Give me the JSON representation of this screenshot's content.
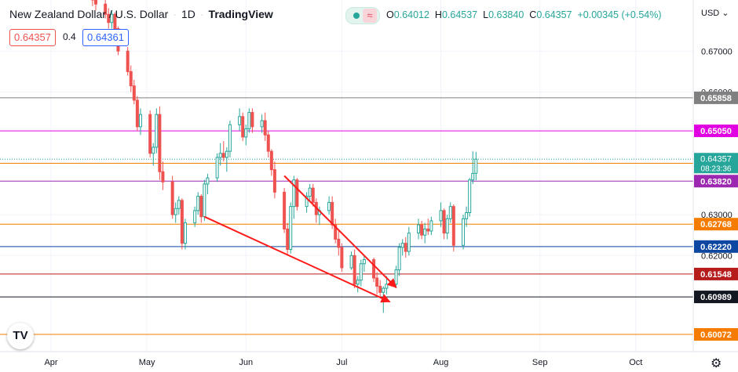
{
  "header": {
    "instrument": "New Zealand Dollar / U.S. Dollar",
    "interval": "1D",
    "brand": "TradingView",
    "ohlc": {
      "O": "0.64012",
      "H": "0.64537",
      "L": "0.63840",
      "C": "0.64357",
      "change": "+0.00345 (+0.54%)"
    }
  },
  "trade": {
    "sell": "0.64357",
    "spread": "0.4",
    "buy": "0.64361"
  },
  "axis": {
    "currency": "USD"
  },
  "chart_data": {
    "type": "candlestick",
    "x_labels": [
      "Apr",
      "May",
      "Jun",
      "Jul",
      "Aug",
      "Sep",
      "Oct"
    ],
    "y_ticks": [
      0.67,
      0.66,
      0.63,
      0.62
    ],
    "ylim": [
      0.5965,
      0.6825
    ],
    "last_price": 0.64357,
    "countdown": "08:23:36",
    "levels": [
      {
        "value": 0.65858,
        "color": "#808080"
      },
      {
        "value": 0.6505,
        "color": "#e100e1"
      },
      {
        "value": 0.64256,
        "color": "#f57c00"
      },
      {
        "value": 0.6382,
        "color": "#9c27b0"
      },
      {
        "value": 0.62768,
        "color": "#f57c00"
      },
      {
        "value": 0.6222,
        "color": "#0d47a1"
      },
      {
        "value": 0.61548,
        "color": "#b71c1c"
      },
      {
        "value": 0.60989,
        "color": "#131722"
      },
      {
        "value": 0.60072,
        "color": "#f57c00"
      }
    ],
    "arrows": [
      {
        "from": [
          "05-19",
          0.6295
        ],
        "to": [
          "07-16",
          0.6087
        ]
      },
      {
        "from": [
          "06-13",
          0.6395
        ],
        "to": [
          "07-18",
          0.6122
        ]
      }
    ],
    "candles": [
      [
        "04-14",
        0.685,
        0.687,
        0.681,
        0.6825
      ],
      [
        "04-15",
        0.6825,
        0.6845,
        0.68,
        0.6815
      ],
      [
        "04-18",
        0.6815,
        0.683,
        0.678,
        0.679
      ],
      [
        "04-19",
        0.679,
        0.6805,
        0.6755,
        0.677
      ],
      [
        "04-20",
        0.677,
        0.68,
        0.6755,
        0.679
      ],
      [
        "04-21",
        0.679,
        0.6795,
        0.674,
        0.6755
      ],
      [
        "04-22",
        0.6755,
        0.676,
        0.669,
        0.67
      ],
      [
        "04-25",
        0.67,
        0.671,
        0.664,
        0.665
      ],
      [
        "04-26",
        0.665,
        0.6665,
        0.66,
        0.6615
      ],
      [
        "04-27",
        0.6615,
        0.663,
        0.657,
        0.658
      ],
      [
        "04-28",
        0.658,
        0.659,
        0.6505,
        0.6515
      ],
      [
        "04-29",
        0.6515,
        0.656,
        0.6495,
        0.6545
      ],
      [
        "05-02",
        0.6545,
        0.6555,
        0.644,
        0.645
      ],
      [
        "05-03",
        0.645,
        0.6475,
        0.642,
        0.6465
      ],
      [
        "05-04",
        0.6465,
        0.656,
        0.645,
        0.6545
      ],
      [
        "05-05",
        0.6545,
        0.6565,
        0.6385,
        0.6405
      ],
      [
        "05-06",
        0.6405,
        0.643,
        0.636,
        0.638
      ],
      [
        "05-09",
        0.638,
        0.6395,
        0.629,
        0.63
      ],
      [
        "05-10",
        0.63,
        0.633,
        0.628,
        0.6315
      ],
      [
        "05-11",
        0.6315,
        0.6345,
        0.63,
        0.6335
      ],
      [
        "05-12",
        0.6335,
        0.634,
        0.6215,
        0.623
      ],
      [
        "05-13",
        0.623,
        0.629,
        0.6215,
        0.628
      ],
      [
        "05-16",
        0.628,
        0.632,
        0.627,
        0.631
      ],
      [
        "05-17",
        0.631,
        0.6355,
        0.63,
        0.6345
      ],
      [
        "05-18",
        0.6345,
        0.635,
        0.628,
        0.6295
      ],
      [
        "05-19",
        0.6295,
        0.6385,
        0.6285,
        0.6375
      ],
      [
        "05-20",
        0.6375,
        0.64,
        0.635,
        0.639
      ],
      [
        "05-23",
        0.639,
        0.645,
        0.638,
        0.644
      ],
      [
        "05-24",
        0.644,
        0.6475,
        0.642,
        0.645
      ],
      [
        "05-25",
        0.645,
        0.648,
        0.643,
        0.644
      ],
      [
        "05-26",
        0.644,
        0.6465,
        0.6405,
        0.6455
      ],
      [
        "05-27",
        0.6455,
        0.653,
        0.644,
        0.652
      ],
      [
        "05-30",
        0.652,
        0.656,
        0.6505,
        0.654
      ],
      [
        "05-31",
        0.654,
        0.655,
        0.648,
        0.649
      ],
      [
        "06-01",
        0.649,
        0.652,
        0.647,
        0.651
      ],
      [
        "06-02",
        0.651,
        0.656,
        0.65,
        0.655
      ],
      [
        "06-03",
        0.655,
        0.656,
        0.65,
        0.6515
      ],
      [
        "06-06",
        0.6515,
        0.6545,
        0.65,
        0.653
      ],
      [
        "06-07",
        0.653,
        0.655,
        0.648,
        0.6495
      ],
      [
        "06-08",
        0.6495,
        0.6505,
        0.644,
        0.6455
      ],
      [
        "06-09",
        0.6455,
        0.646,
        0.6395,
        0.641
      ],
      [
        "06-10",
        0.641,
        0.643,
        0.634,
        0.6355
      ],
      [
        "06-13",
        0.6355,
        0.6365,
        0.6255,
        0.6265
      ],
      [
        "06-14",
        0.6265,
        0.628,
        0.62,
        0.6215
      ],
      [
        "06-15",
        0.6215,
        0.633,
        0.6205,
        0.632
      ],
      [
        "06-16",
        0.632,
        0.6395,
        0.629,
        0.6385
      ],
      [
        "06-17",
        0.6385,
        0.639,
        0.631,
        0.632
      ],
      [
        "06-20",
        0.632,
        0.6355,
        0.6305,
        0.6345
      ],
      [
        "06-21",
        0.6345,
        0.6375,
        0.633,
        0.6365
      ],
      [
        "06-22",
        0.6365,
        0.6375,
        0.632,
        0.633
      ],
      [
        "06-23",
        0.633,
        0.634,
        0.628,
        0.63
      ],
      [
        "06-24",
        0.63,
        0.632,
        0.6275,
        0.631
      ],
      [
        "06-27",
        0.631,
        0.6345,
        0.63,
        0.633
      ],
      [
        "06-28",
        0.633,
        0.6345,
        0.6265,
        0.6275
      ],
      [
        "06-29",
        0.6275,
        0.629,
        0.623,
        0.624
      ],
      [
        "06-30",
        0.624,
        0.626,
        0.62,
        0.622
      ],
      [
        "07-01",
        0.622,
        0.623,
        0.616,
        0.617
      ],
      [
        "07-04",
        0.617,
        0.621,
        0.6165,
        0.62
      ],
      [
        "07-05",
        0.62,
        0.6215,
        0.612,
        0.613
      ],
      [
        "07-06",
        0.613,
        0.615,
        0.611,
        0.614
      ],
      [
        "07-07",
        0.614,
        0.619,
        0.6125,
        0.618
      ],
      [
        "07-08",
        0.618,
        0.62,
        0.616,
        0.619
      ],
      [
        "07-11",
        0.619,
        0.6195,
        0.6135,
        0.6145
      ],
      [
        "07-12",
        0.6145,
        0.616,
        0.6105,
        0.6125
      ],
      [
        "07-13",
        0.6125,
        0.614,
        0.6095,
        0.611
      ],
      [
        "07-14",
        0.611,
        0.6125,
        0.606,
        0.612
      ],
      [
        "07-15",
        0.612,
        0.615,
        0.6105,
        0.613
      ],
      [
        "07-18",
        0.613,
        0.6175,
        0.612,
        0.6165
      ],
      [
        "07-19",
        0.6165,
        0.623,
        0.615,
        0.622
      ],
      [
        "07-20",
        0.622,
        0.624,
        0.62,
        0.623
      ],
      [
        "07-21",
        0.623,
        0.6245,
        0.6195,
        0.621
      ],
      [
        "07-22",
        0.621,
        0.627,
        0.62,
        0.6255
      ],
      [
        "07-25",
        0.6255,
        0.629,
        0.624,
        0.6275
      ],
      [
        "07-26",
        0.6275,
        0.6285,
        0.624,
        0.625
      ],
      [
        "07-27",
        0.625,
        0.628,
        0.623,
        0.6265
      ],
      [
        "07-28",
        0.6265,
        0.629,
        0.625,
        0.626
      ],
      [
        "07-29",
        0.626,
        0.6295,
        0.625,
        0.6285
      ],
      [
        "08-01",
        0.6285,
        0.633,
        0.627,
        0.631
      ],
      [
        "08-02",
        0.631,
        0.6315,
        0.624,
        0.6255
      ],
      [
        "08-03",
        0.6255,
        0.63,
        0.624,
        0.629
      ],
      [
        "08-04",
        0.629,
        0.633,
        0.628,
        0.632
      ],
      [
        "08-05",
        0.632,
        0.6325,
        0.621,
        0.6225
      ],
      [
        "08-08",
        0.6225,
        0.63,
        0.6215,
        0.629
      ],
      [
        "08-09",
        0.629,
        0.632,
        0.627,
        0.6305
      ],
      [
        "08-10",
        0.6305,
        0.639,
        0.6295,
        0.6385
      ],
      [
        "08-11",
        0.6385,
        0.6455,
        0.6375,
        0.6401
      ],
      [
        "08-12",
        0.64012,
        0.64537,
        0.6384,
        0.64357
      ]
    ]
  }
}
